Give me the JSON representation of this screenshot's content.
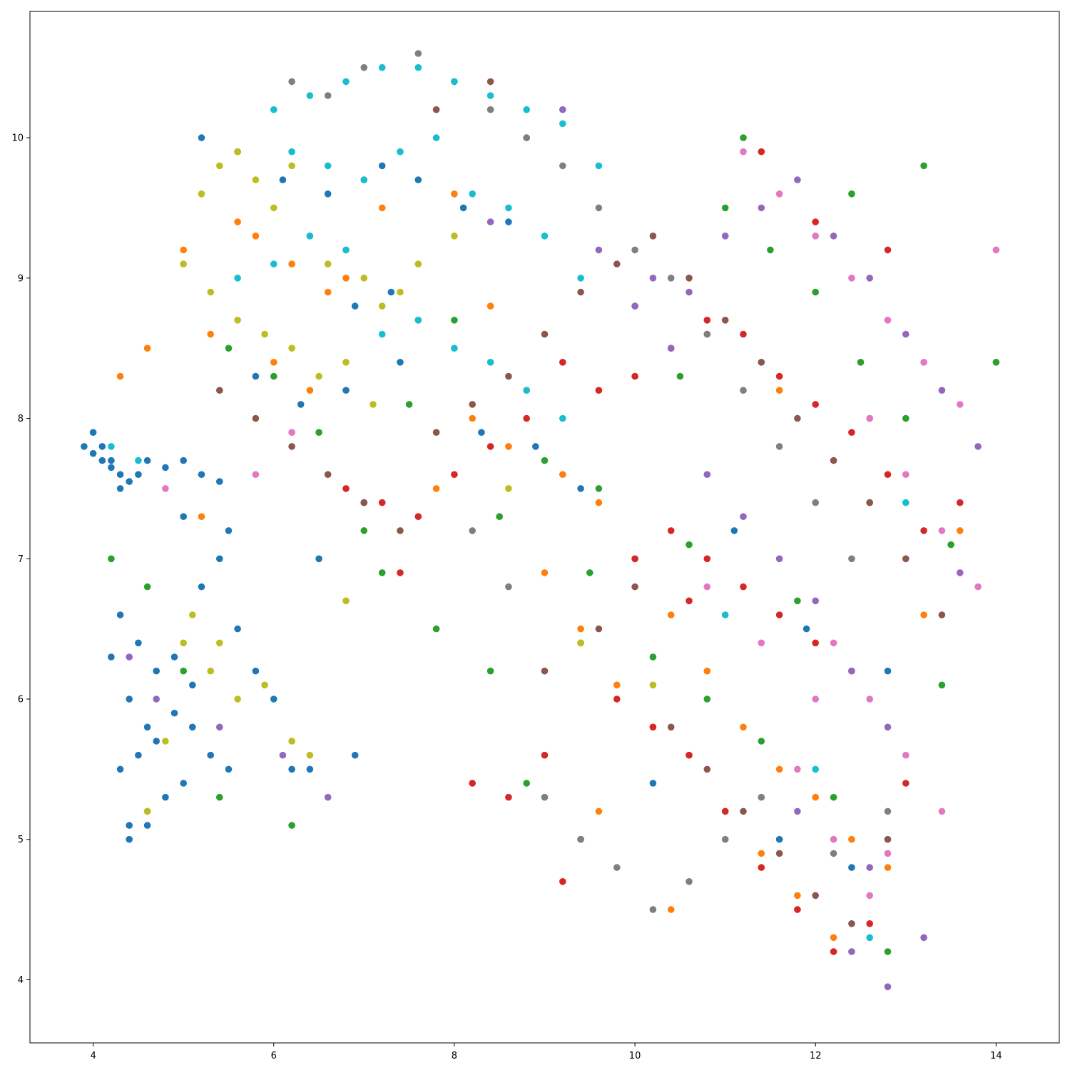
{
  "chart_data": {
    "type": "scatter",
    "title": "",
    "xlabel": "",
    "ylabel": "",
    "xlim": [
      3.3,
      14.7
    ],
    "ylim": [
      3.55,
      10.9
    ],
    "xticks": [
      4,
      6,
      8,
      10,
      12,
      14
    ],
    "yticks": [
      4,
      5,
      6,
      7,
      8,
      9,
      10
    ],
    "grid": false,
    "legend": "none",
    "palette": [
      "#1f77b4",
      "#ff7f0e",
      "#2ca02c",
      "#d62728",
      "#9467bd",
      "#8c564b",
      "#e377c2",
      "#7f7f7f",
      "#bcbd22",
      "#17becf"
    ],
    "series": [
      {
        "color": "#1f77b4",
        "x": [
          3.9,
          4.0,
          4.1,
          4.2,
          4.3,
          4.4,
          4.1,
          4.2,
          4.0,
          4.3,
          4.5,
          4.6,
          4.8,
          5.0,
          5.2,
          5.4,
          4.2,
          4.4,
          4.6,
          4.3,
          4.5,
          4.7,
          4.9,
          5.1,
          5.3,
          5.5,
          4.4,
          4.6,
          4.8,
          5.0,
          4.3,
          4.5,
          4.7,
          4.9,
          5.1,
          4.4,
          4.6,
          5.2,
          5.4,
          5.6,
          5.8,
          6.0,
          6.2,
          5.0,
          5.5,
          6.5,
          7.0,
          5.2,
          5.6,
          6.1,
          6.6,
          7.2,
          7.6,
          8.1,
          8.6,
          6.9,
          7.3,
          5.8,
          6.3,
          6.8,
          7.4,
          8.3,
          8.9,
          9.4,
          11.1,
          11.9,
          12.8,
          10.2,
          11.6,
          12.4,
          6.4,
          6.9
        ],
        "y": [
          7.8,
          7.75,
          7.7,
          7.65,
          7.6,
          7.55,
          7.8,
          7.7,
          7.9,
          7.5,
          7.6,
          7.7,
          7.65,
          7.7,
          7.6,
          7.55,
          6.3,
          6.0,
          5.8,
          5.5,
          5.6,
          5.7,
          5.9,
          5.8,
          5.6,
          5.5,
          5.1,
          5.2,
          5.3,
          5.4,
          6.6,
          6.4,
          6.2,
          6.3,
          6.1,
          5.0,
          5.1,
          6.8,
          7.0,
          6.5,
          6.2,
          6.0,
          5.5,
          7.3,
          7.2,
          7.0,
          7.4,
          10.0,
          9.9,
          9.7,
          9.6,
          9.8,
          9.7,
          9.5,
          9.4,
          8.8,
          8.9,
          8.3,
          8.1,
          8.2,
          8.4,
          7.9,
          7.8,
          7.5,
          7.2,
          6.5,
          6.2,
          5.4,
          5.0,
          4.8,
          5.5,
          5.6
        ]
      },
      {
        "color": "#ff7f0e",
        "x": [
          4.3,
          4.6,
          5.0,
          5.3,
          5.6,
          6.0,
          6.4,
          6.8,
          7.2,
          7.6,
          8.0,
          8.4,
          8.8,
          9.2,
          9.6,
          10.0,
          10.4,
          10.8,
          11.2,
          11.6,
          12.0,
          12.4,
          12.8,
          13.2,
          13.6,
          9.0,
          9.4,
          9.8,
          10.2,
          10.6,
          11.0,
          11.4,
          11.8,
          12.2,
          8.6,
          8.2,
          7.8,
          5.2,
          5.8,
          6.2,
          6.6,
          7.0,
          10.8,
          11.6,
          12.6,
          9.6,
          10.4
        ],
        "y": [
          8.3,
          8.5,
          9.2,
          8.6,
          9.4,
          8.4,
          8.2,
          9.0,
          9.5,
          8.7,
          9.6,
          8.8,
          8.2,
          7.6,
          7.4,
          7.0,
          6.6,
          6.2,
          5.8,
          5.5,
          5.3,
          5.0,
          4.8,
          6.6,
          7.2,
          6.9,
          6.5,
          6.1,
          5.8,
          5.6,
          5.2,
          4.9,
          4.6,
          4.3,
          7.8,
          8.0,
          7.5,
          7.3,
          9.3,
          9.1,
          8.9,
          9.7,
          8.6,
          8.2,
          8.0,
          5.2,
          4.5
        ]
      },
      {
        "color": "#2ca02c",
        "x": [
          4.2,
          4.6,
          5.0,
          5.5,
          6.0,
          6.5,
          7.0,
          7.5,
          8.0,
          8.5,
          9.0,
          9.5,
          10.0,
          10.5,
          11.0,
          11.5,
          12.0,
          12.5,
          13.0,
          13.5,
          14.0,
          8.8,
          9.4,
          10.2,
          10.8,
          11.4,
          12.2,
          12.8,
          13.4,
          9.6,
          10.6,
          11.8,
          12.6,
          7.2,
          7.8,
          8.4,
          11.2,
          12.4,
          13.2,
          5.4,
          6.2
        ],
        "y": [
          7.0,
          6.8,
          6.2,
          8.5,
          8.3,
          7.9,
          7.2,
          8.1,
          8.7,
          7.3,
          7.7,
          6.9,
          8.8,
          8.3,
          9.5,
          9.2,
          8.9,
          8.4,
          8.0,
          7.1,
          8.4,
          5.4,
          5.0,
          6.3,
          6.0,
          5.7,
          5.3,
          4.2,
          6.1,
          7.5,
          7.1,
          6.7,
          7.4,
          6.9,
          6.5,
          6.2,
          10.0,
          9.6,
          9.8,
          5.3,
          5.1
        ]
      },
      {
        "color": "#d62728",
        "x": [
          6.8,
          7.2,
          7.6,
          8.0,
          8.4,
          8.8,
          9.2,
          9.6,
          10.0,
          10.4,
          10.8,
          11.2,
          11.6,
          12.0,
          12.4,
          12.8,
          13.2,
          9.4,
          9.8,
          10.2,
          10.6,
          11.0,
          11.4,
          11.8,
          12.2,
          12.6,
          10.4,
          10.8,
          11.2,
          11.6,
          12.0,
          12.4,
          13.0,
          13.6,
          9.0,
          8.6,
          8.2,
          7.4,
          11.4,
          12.0,
          12.8,
          10.0,
          10.6,
          9.2
        ],
        "y": [
          7.5,
          7.4,
          7.3,
          7.6,
          7.8,
          8.0,
          8.4,
          8.2,
          8.3,
          8.5,
          8.7,
          8.6,
          8.3,
          8.1,
          7.9,
          7.6,
          7.2,
          6.4,
          6.0,
          5.8,
          5.6,
          5.2,
          4.8,
          4.5,
          4.2,
          4.4,
          7.2,
          7.0,
          6.8,
          6.6,
          6.4,
          6.2,
          5.4,
          7.4,
          5.6,
          5.3,
          5.4,
          6.9,
          9.9,
          9.4,
          9.2,
          7.0,
          6.7,
          4.7
        ]
      },
      {
        "color": "#9467bd",
        "x": [
          10.2,
          10.6,
          11.0,
          11.4,
          11.8,
          12.2,
          12.6,
          13.0,
          13.4,
          13.8,
          10.8,
          11.2,
          11.6,
          12.0,
          12.4,
          12.8,
          9.6,
          10.0,
          10.4,
          11.8,
          12.6,
          13.2,
          13.6,
          9.2,
          8.8,
          8.4,
          4.4,
          4.7,
          5.4,
          6.1,
          6.6,
          12.8,
          12.4
        ],
        "y": [
          9.0,
          8.9,
          9.3,
          9.5,
          9.7,
          9.3,
          9.0,
          8.6,
          8.2,
          7.8,
          7.6,
          7.3,
          7.0,
          6.7,
          6.2,
          5.8,
          9.2,
          8.8,
          8.5,
          5.2,
          4.8,
          4.3,
          6.9,
          10.2,
          10.0,
          9.4,
          6.3,
          6.0,
          5.8,
          5.6,
          5.3,
          3.95,
          4.2
        ]
      },
      {
        "color": "#8c564b",
        "x": [
          5.4,
          5.8,
          6.2,
          6.6,
          7.0,
          7.4,
          7.8,
          8.2,
          8.6,
          9.0,
          9.4,
          9.8,
          10.2,
          10.6,
          11.0,
          11.4,
          11.8,
          12.2,
          12.6,
          13.0,
          13.4,
          10.4,
          10.8,
          11.2,
          11.6,
          12.0,
          12.4,
          12.8,
          9.0,
          9.6,
          10.0,
          7.8,
          8.4
        ],
        "y": [
          8.2,
          8.0,
          7.8,
          7.6,
          7.4,
          7.2,
          7.9,
          8.1,
          8.3,
          8.6,
          8.9,
          9.1,
          9.3,
          9.0,
          8.7,
          8.4,
          8.0,
          7.7,
          7.4,
          7.0,
          6.6,
          5.8,
          5.5,
          5.2,
          4.9,
          4.6,
          4.4,
          5.0,
          6.2,
          6.5,
          6.8,
          10.2,
          10.4
        ]
      },
      {
        "color": "#e377c2",
        "x": [
          11.2,
          11.6,
          12.0,
          12.4,
          12.8,
          13.2,
          13.6,
          14.0,
          12.6,
          13.0,
          13.4,
          13.8,
          12.2,
          12.6,
          13.0,
          13.4,
          11.8,
          12.2,
          12.6,
          10.8,
          11.4,
          12.0,
          12.8,
          5.8,
          6.2,
          4.8
        ],
        "y": [
          9.9,
          9.6,
          9.3,
          9.0,
          8.7,
          8.4,
          8.1,
          9.2,
          8.0,
          7.6,
          7.2,
          6.8,
          6.4,
          6.0,
          5.6,
          5.2,
          5.5,
          5.0,
          4.6,
          6.8,
          6.4,
          6.0,
          4.9,
          7.6,
          7.9,
          7.5
        ]
      },
      {
        "color": "#7f7f7f",
        "x": [
          7.6,
          8.0,
          8.4,
          8.8,
          9.2,
          9.6,
          10.0,
          10.4,
          10.8,
          11.2,
          11.6,
          12.0,
          12.4,
          9.0,
          9.4,
          9.8,
          10.2,
          10.6,
          11.0,
          11.4,
          6.2,
          6.6,
          7.0,
          8.2,
          8.6,
          12.2,
          12.8
        ],
        "y": [
          10.6,
          10.4,
          10.2,
          10.0,
          9.8,
          9.5,
          9.2,
          9.0,
          8.6,
          8.2,
          7.8,
          7.4,
          7.0,
          5.3,
          5.0,
          4.8,
          4.5,
          4.7,
          5.0,
          5.3,
          10.4,
          10.3,
          10.5,
          7.2,
          6.8,
          4.9,
          5.2
        ]
      },
      {
        "color": "#bcbd22",
        "x": [
          5.2,
          5.4,
          5.6,
          5.8,
          6.0,
          6.2,
          6.4,
          6.6,
          6.8,
          7.0,
          7.2,
          7.4,
          5.0,
          5.3,
          5.6,
          5.9,
          6.2,
          6.5,
          6.8,
          7.1,
          5.0,
          5.3,
          5.6,
          5.9,
          6.2,
          5.1,
          5.4,
          4.8,
          4.6,
          6.4,
          6.8,
          7.6,
          8.0,
          8.6,
          9.4,
          10.2
        ],
        "y": [
          9.6,
          9.8,
          9.9,
          9.7,
          9.5,
          9.8,
          9.3,
          9.1,
          9.2,
          9.0,
          8.8,
          8.9,
          9.1,
          8.9,
          8.7,
          8.6,
          8.5,
          8.3,
          8.4,
          8.1,
          6.4,
          6.2,
          6.0,
          6.1,
          5.7,
          6.6,
          6.4,
          5.7,
          5.2,
          5.6,
          6.7,
          9.1,
          9.3,
          7.5,
          6.4,
          6.1
        ]
      },
      {
        "color": "#17becf",
        "x": [
          6.0,
          6.4,
          6.8,
          7.2,
          7.6,
          8.0,
          8.4,
          8.8,
          9.2,
          9.6,
          6.2,
          6.6,
          7.0,
          7.4,
          7.8,
          8.2,
          8.6,
          9.0,
          9.4,
          5.6,
          6.0,
          6.4,
          6.8,
          7.2,
          7.6,
          8.0,
          8.4,
          8.8,
          9.2,
          4.2,
          4.5,
          11.0,
          12.0,
          13.0,
          12.6
        ],
        "y": [
          10.2,
          10.3,
          10.4,
          10.5,
          10.5,
          10.4,
          10.3,
          10.2,
          10.1,
          9.8,
          9.9,
          9.8,
          9.7,
          9.9,
          10.0,
          9.6,
          9.5,
          9.3,
          9.0,
          9.0,
          9.1,
          9.3,
          9.2,
          8.6,
          8.7,
          8.5,
          8.4,
          8.2,
          8.0,
          7.8,
          7.7,
          6.6,
          5.5,
          7.4,
          4.3
        ]
      }
    ]
  }
}
